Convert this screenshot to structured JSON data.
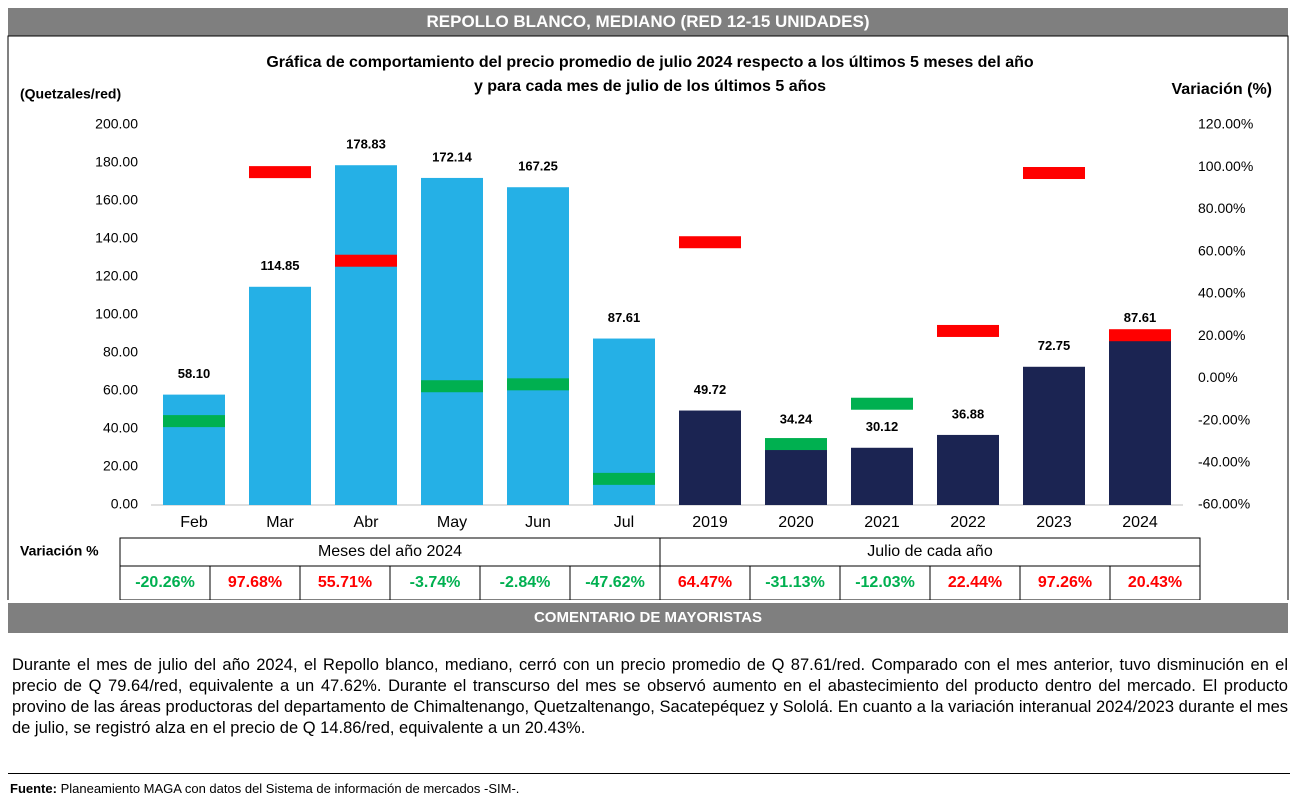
{
  "header": {
    "title": "REPOLLO BLANCO, MEDIANO (RED 12-15 UNIDADES)"
  },
  "chart_data": {
    "type": "bar",
    "title": [
      "Gráfica de comportamiento del precio promedio de julio 2024 respecto a los últimos 5 meses del año",
      "y para cada mes de julio de los últimos 5 años"
    ],
    "ylabel": "(Quetzales/red)",
    "y2label": "Variación (%)",
    "ylim": [
      0,
      200
    ],
    "yticks": [
      {
        "value": 0,
        "label": "0.00"
      },
      {
        "value": 20,
        "label": "20.00"
      },
      {
        "value": 40,
        "label": "40.00"
      },
      {
        "value": 60,
        "label": "60.00"
      },
      {
        "value": 80,
        "label": "80.00"
      },
      {
        "value": 100,
        "label": "100.00"
      },
      {
        "value": 120,
        "label": "120.00"
      },
      {
        "value": 140,
        "label": "140.00"
      },
      {
        "value": 160,
        "label": "160.00"
      },
      {
        "value": 180,
        "label": "180.00"
      },
      {
        "value": 200,
        "label": "200.00"
      }
    ],
    "y2lim": [
      -60,
      120
    ],
    "y2ticks": [
      {
        "value": -60,
        "label": "-60.00%"
      },
      {
        "value": -40,
        "label": "-40.00%"
      },
      {
        "value": -20,
        "label": "-20.00%"
      },
      {
        "value": 0,
        "label": "0.00%"
      },
      {
        "value": 20,
        "label": "20.00%"
      },
      {
        "value": 40,
        "label": "40.00%"
      },
      {
        "value": 60,
        "label": "60.00%"
      },
      {
        "value": 80,
        "label": "80.00%"
      },
      {
        "value": 100,
        "label": "100.00%"
      },
      {
        "value": 120,
        "label": "120.00%"
      }
    ],
    "positive_color": "#ff0000",
    "negative_color": "#00b050",
    "variation_row_label": "Variación %",
    "groups": [
      {
        "label": "Meses del año  2024",
        "color": "#25b0e6",
        "categories": [
          "Feb",
          "Mar",
          "Abr",
          "May",
          "Jun",
          "Jul"
        ],
        "values": [
          58.1,
          114.85,
          178.83,
          172.14,
          167.25,
          87.61
        ],
        "value_labels": [
          "58.10",
          "114.85",
          "178.83",
          "172.14",
          "167.25",
          "87.61"
        ],
        "variation": [
          -20.26,
          97.68,
          55.71,
          -3.74,
          -2.84,
          -47.62
        ],
        "variation_labels": [
          "-20.26%",
          "97.68%",
          "55.71%",
          "-3.74%",
          "-2.84%",
          "-47.62%"
        ]
      },
      {
        "label": "Julio de cada año",
        "color": "#1b2452",
        "categories": [
          "2019",
          "2020",
          "2021",
          "2022",
          "2023",
          "2024"
        ],
        "values": [
          49.72,
          34.24,
          30.12,
          36.88,
          72.75,
          87.61
        ],
        "value_labels": [
          "49.72",
          "34.24",
          "30.12",
          "36.88",
          "72.75",
          "87.61"
        ],
        "variation": [
          64.47,
          -31.13,
          -12.03,
          22.44,
          97.26,
          20.43
        ],
        "variation_labels": [
          "64.47%",
          "-31.13%",
          "-12.03%",
          "22.44%",
          "97.26%",
          "20.43%"
        ]
      }
    ]
  },
  "comment": {
    "title": "COMENTARIO DE MAYORISTAS",
    "text": "Durante el mes de julio del año 2024, el  Repollo blanco, mediano, cerró con un precio promedio de Q 87.61/red. Comparado con el mes anterior, tuvo disminución en el precio de Q 79.64/red, equivalente a un 47.62%. Durante el transcurso del mes se observó aumento en el abastecimiento del producto dentro del mercado. El producto provino de las áreas productoras del departamento de Chimaltenango, Quetzaltenango, Sacatepéquez y Sololá. En cuanto a la variación interanual 2024/2023 durante el mes de julio, se registró alza en el precio de Q 14.86/red, equivalente a un 20.43%."
  },
  "source": {
    "label": "Fuente:",
    "text": " Planeamiento MAGA con datos del Sistema de información de mercados -SIM-."
  }
}
